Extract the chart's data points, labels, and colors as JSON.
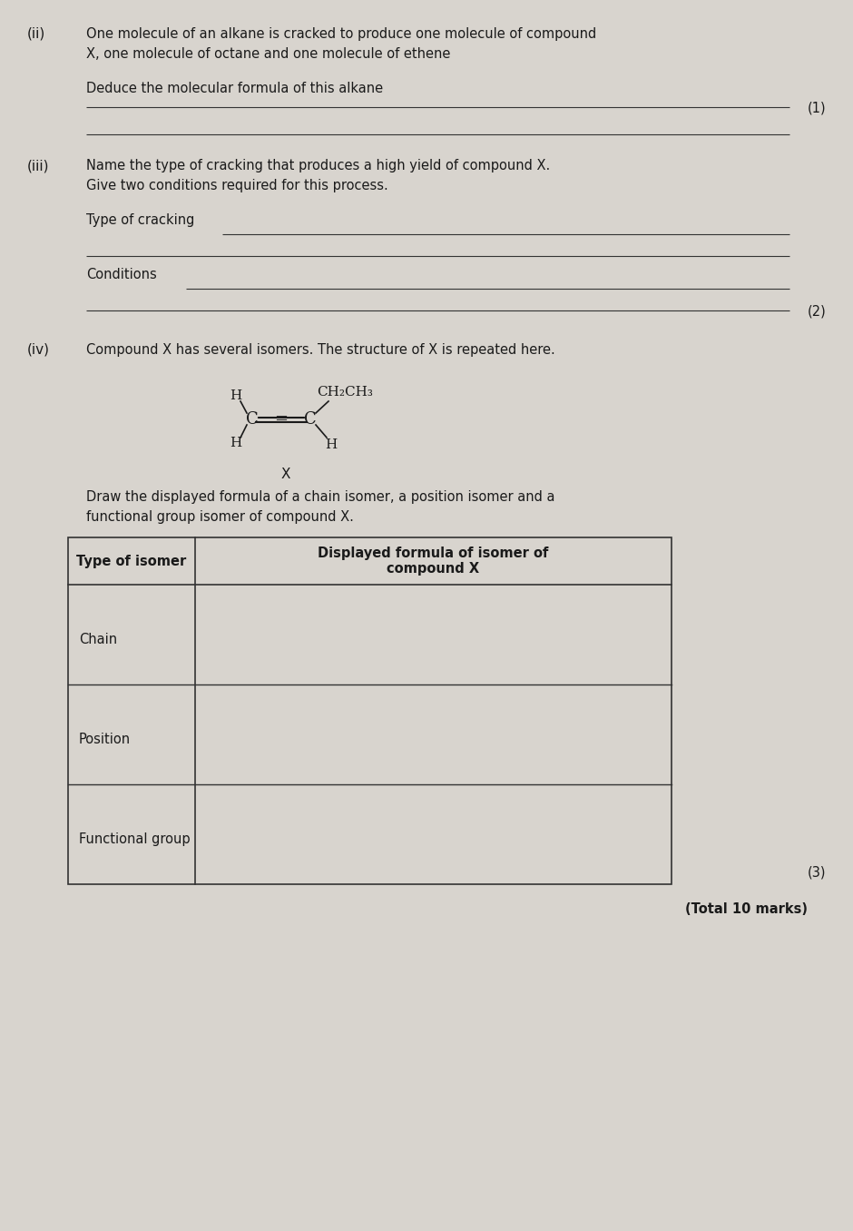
{
  "bg_color": "#d8d4ce",
  "text_color": "#1a1a1a",
  "page_bg": "#c8c4be",
  "title_ii": "(ii)",
  "title_iii": "(iii)",
  "title_iv": "(iv)",
  "line_ii_text1": "One molecule of an alkane is cracked to produce one molecule of compound",
  "line_ii_text2": "X, one molecule of octane and one molecule of ethene",
  "line_ii_sub": "Deduce the molecular formula of this alkane",
  "marks_1": "(1)",
  "line_iii_text1": "Name the type of cracking that produces a high yield of compound X.",
  "line_iii_text2": "Give two conditions required for this process.",
  "type_cracking_label": "Type of cracking",
  "conditions_label": "Conditions",
  "marks_2": "(2)",
  "line_iv_text": "Compound X has several isomers. The structure of X is repeated here.",
  "draw_instruction1": "Draw the displayed formula of a chain isomer, a position isomer and a",
  "draw_instruction2": "functional group isomer of compound X.",
  "table_header_col1": "Type of isomer",
  "table_header_col2": "Displayed formula of isomer of\ncompound X",
  "table_row1": "Chain",
  "table_row2": "Position",
  "table_row3": "Functional group",
  "marks_3": "(3)",
  "total": "(Total 10 marks)"
}
